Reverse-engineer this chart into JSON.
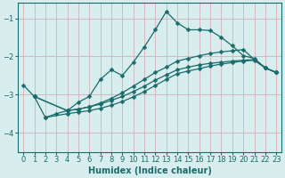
{
  "xlabel": "Humidex (Indice chaleur)",
  "bg_color": "#d8eeee",
  "grid_color": "#d4b8c0",
  "line_color": "#1a6b6b",
  "markersize": 2.5,
  "linewidth": 0.9,
  "xlim": [
    -0.5,
    23.5
  ],
  "ylim": [
    -4.5,
    -0.6
  ],
  "yticks": [
    -4,
    -3,
    -2,
    -1
  ],
  "xticks": [
    0,
    1,
    2,
    3,
    4,
    5,
    6,
    7,
    8,
    9,
    10,
    11,
    12,
    13,
    14,
    15,
    16,
    17,
    18,
    19,
    20,
    21,
    22,
    23
  ],
  "lines": [
    {
      "x": [
        0,
        1,
        2,
        3,
        4,
        5,
        6,
        7,
        8,
        9,
        10,
        11,
        12,
        13,
        14,
        15,
        16,
        17,
        18,
        19,
        20,
        21,
        22,
        23
      ],
      "y": [
        -2.75,
        -3.05,
        -3.6,
        -3.5,
        -3.42,
        -3.2,
        -3.05,
        -2.6,
        -2.35,
        -2.5,
        -2.15,
        -1.75,
        -1.3,
        -0.82,
        -1.12,
        -1.3,
        -1.3,
        -1.32,
        -1.5,
        -1.72,
        -1.98,
        -2.05,
        -2.3,
        -2.42
      ]
    },
    {
      "x": [
        1,
        4,
        5,
        6,
        7,
        8,
        9,
        10,
        11,
        12,
        13,
        14,
        15,
        16,
        17,
        18,
        19,
        20,
        21,
        22,
        23
      ],
      "y": [
        -3.05,
        -3.42,
        -3.38,
        -3.32,
        -3.25,
        -3.15,
        -3.05,
        -2.92,
        -2.78,
        -2.62,
        -2.48,
        -2.35,
        -2.28,
        -2.22,
        -2.18,
        -2.15,
        -2.12,
        -2.1,
        -2.08,
        -2.3,
        -2.42
      ]
    },
    {
      "x": [
        1,
        4,
        5,
        6,
        7,
        8,
        9,
        10,
        11,
        12,
        13,
        14,
        15,
        16,
        17,
        18,
        19,
        20,
        21,
        22,
        23
      ],
      "y": [
        -3.05,
        -3.42,
        -3.38,
        -3.32,
        -3.22,
        -3.1,
        -2.95,
        -2.78,
        -2.6,
        -2.42,
        -2.28,
        -2.12,
        -2.05,
        -1.98,
        -1.92,
        -1.88,
        -1.85,
        -1.82,
        -2.08,
        -2.3,
        -2.42
      ]
    },
    {
      "x": [
        2,
        4,
        5,
        6,
        7,
        8,
        9,
        10,
        11,
        12,
        13,
        14,
        15,
        16,
        17,
        18,
        19,
        20,
        21,
        22,
        23
      ],
      "y": [
        -3.6,
        -3.5,
        -3.46,
        -3.42,
        -3.36,
        -3.28,
        -3.18,
        -3.06,
        -2.92,
        -2.76,
        -2.6,
        -2.45,
        -2.38,
        -2.32,
        -2.25,
        -2.2,
        -2.16,
        -2.12,
        -2.1,
        -2.3,
        -2.42
      ]
    }
  ]
}
